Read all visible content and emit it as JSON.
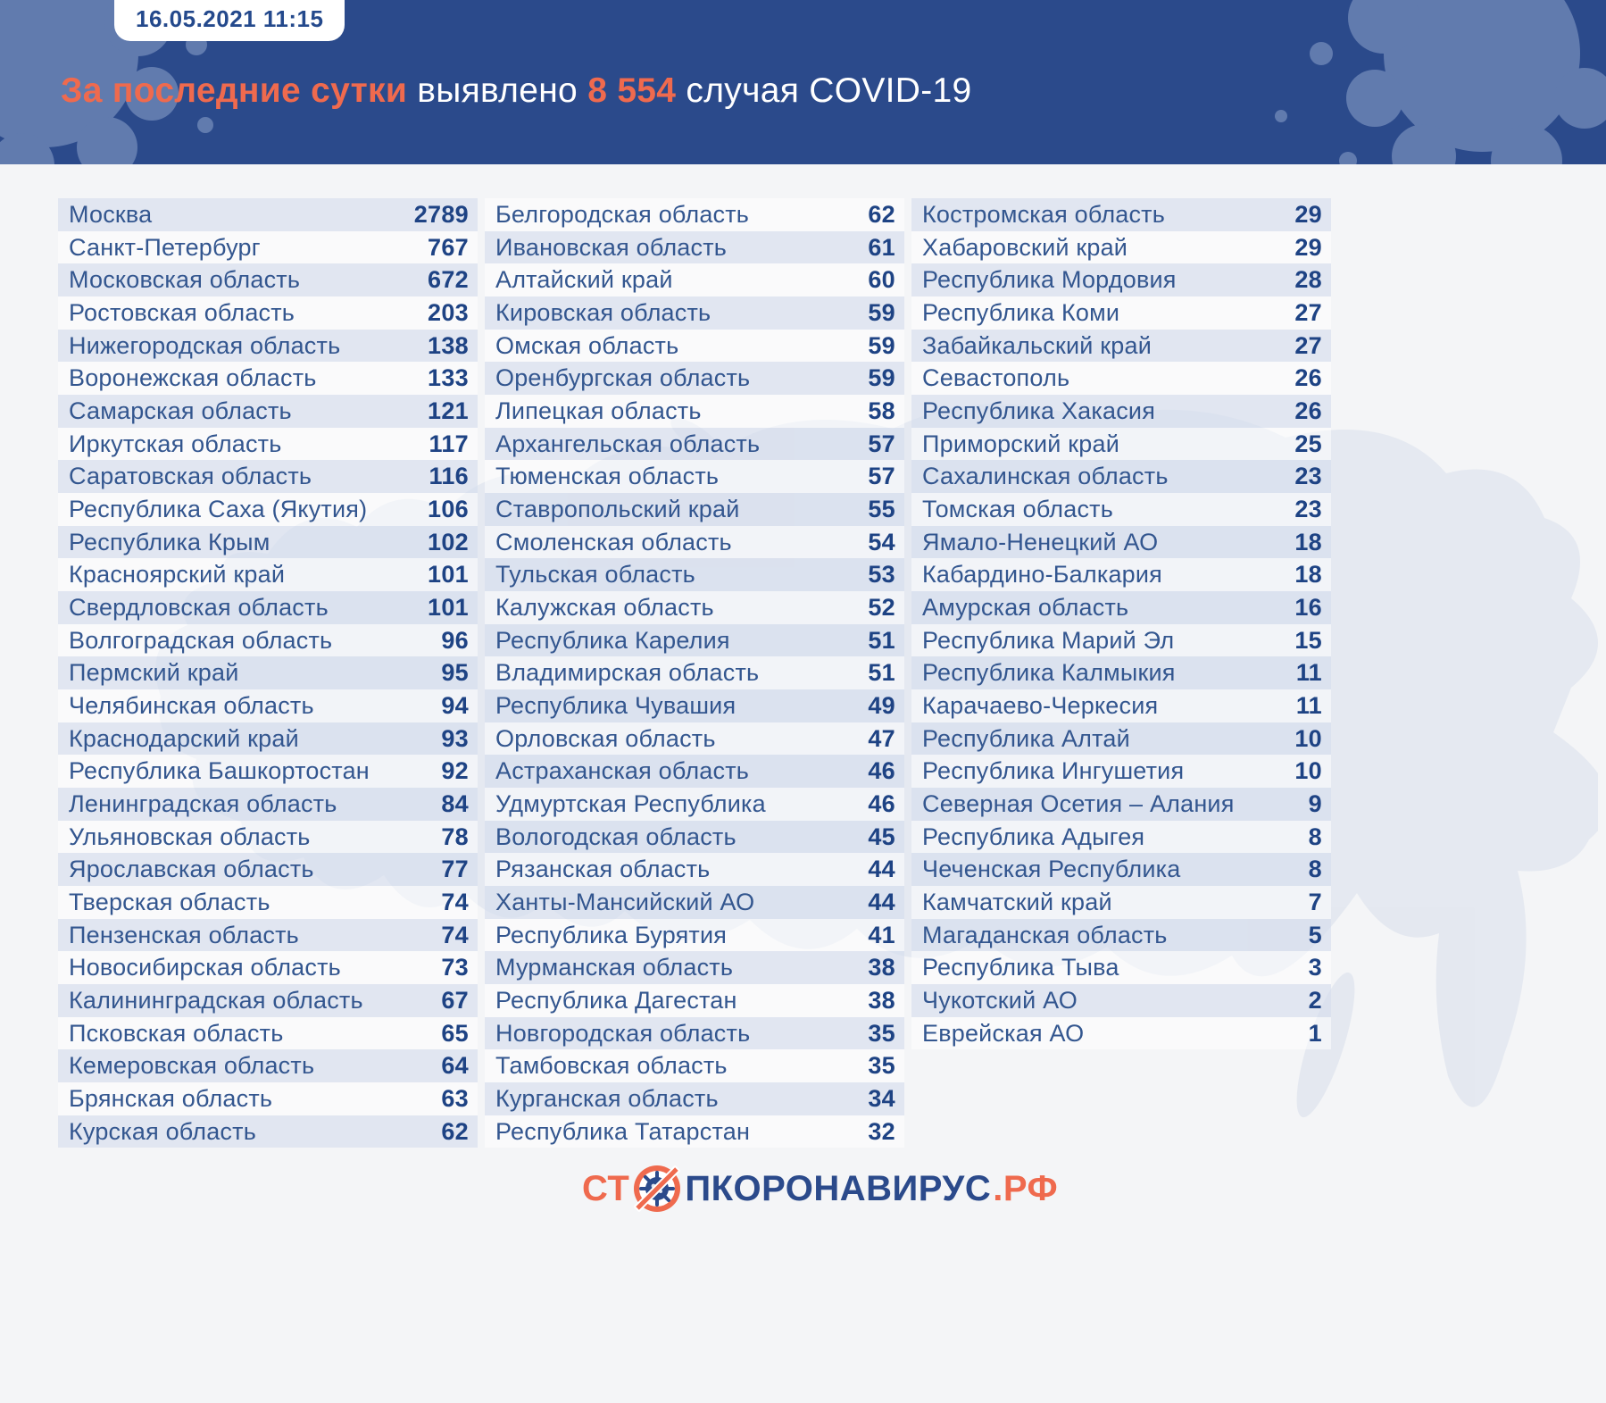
{
  "header": {
    "badge": "16.05.2021 11:15",
    "title": {
      "accent1": "За последние сутки",
      "plain1": " выявлено ",
      "accent2": "8 554",
      "plain2": " случая COVID-19"
    }
  },
  "table": {
    "columns": [
      {
        "rows": [
          {
            "name": "Москва",
            "value": "2789"
          },
          {
            "name": "Санкт-Петербург",
            "value": "767"
          },
          {
            "name": "Московская область",
            "value": "672"
          },
          {
            "name": "Ростовская область",
            "value": "203"
          },
          {
            "name": "Нижегородская область",
            "value": "138"
          },
          {
            "name": "Воронежская область",
            "value": "133"
          },
          {
            "name": "Самарская область",
            "value": "121"
          },
          {
            "name": "Иркутская область",
            "value": "117"
          },
          {
            "name": "Саратовская область",
            "value": "116"
          },
          {
            "name": "Республика Саха (Якутия)",
            "value": "106"
          },
          {
            "name": "Республика Крым",
            "value": "102"
          },
          {
            "name": "Красноярский край",
            "value": "101"
          },
          {
            "name": "Свердловская область",
            "value": "101"
          },
          {
            "name": "Волгоградская область",
            "value": "96"
          },
          {
            "name": "Пермский край",
            "value": "95"
          },
          {
            "name": "Челябинская область",
            "value": "94"
          },
          {
            "name": "Краснодарский край",
            "value": "93"
          },
          {
            "name": "Республика Башкортостан",
            "value": "92"
          },
          {
            "name": "Ленинградская область",
            "value": "84"
          },
          {
            "name": "Ульяновская область",
            "value": "78"
          },
          {
            "name": "Ярославская область",
            "value": "77"
          },
          {
            "name": "Тверская область",
            "value": "74"
          },
          {
            "name": "Пензенская область",
            "value": "74"
          },
          {
            "name": "Новосибирская область",
            "value": "73"
          },
          {
            "name": "Калининградская область",
            "value": "67"
          },
          {
            "name": "Псковская область",
            "value": "65"
          },
          {
            "name": "Кемеровская область",
            "value": "64"
          },
          {
            "name": "Брянская область",
            "value": "63"
          },
          {
            "name": "Курская область",
            "value": "62"
          }
        ]
      },
      {
        "rows": [
          {
            "name": "Белгородская область",
            "value": "62"
          },
          {
            "name": "Ивановская область",
            "value": "61"
          },
          {
            "name": "Алтайский край",
            "value": "60"
          },
          {
            "name": "Кировская область",
            "value": "59"
          },
          {
            "name": "Омская область",
            "value": "59"
          },
          {
            "name": "Оренбургская область",
            "value": "59"
          },
          {
            "name": "Липецкая область",
            "value": "58"
          },
          {
            "name": "Архангельская область",
            "value": "57"
          },
          {
            "name": "Тюменская область",
            "value": "57"
          },
          {
            "name": "Ставропольский край",
            "value": "55"
          },
          {
            "name": "Смоленская область",
            "value": "54"
          },
          {
            "name": "Тульская область",
            "value": "53"
          },
          {
            "name": "Калужская область",
            "value": "52"
          },
          {
            "name": "Республика Карелия",
            "value": "51"
          },
          {
            "name": "Владимирская область",
            "value": "51"
          },
          {
            "name": "Республика Чувашия",
            "value": "49"
          },
          {
            "name": "Орловская область",
            "value": "47"
          },
          {
            "name": "Астраханская область",
            "value": "46"
          },
          {
            "name": "Удмуртская Республика",
            "value": "46"
          },
          {
            "name": "Вологодская область",
            "value": "45"
          },
          {
            "name": "Рязанская область",
            "value": "44"
          },
          {
            "name": "Ханты-Мансийский АО",
            "value": "44"
          },
          {
            "name": "Республика Бурятия",
            "value": "41"
          },
          {
            "name": "Мурманская область",
            "value": "38"
          },
          {
            "name": "Республика Дагестан",
            "value": "38"
          },
          {
            "name": "Новгородская область",
            "value": "35"
          },
          {
            "name": "Тамбовская область",
            "value": "35"
          },
          {
            "name": "Курганская область",
            "value": "34"
          },
          {
            "name": "Республика Татарстан",
            "value": "32"
          }
        ]
      },
      {
        "rows": [
          {
            "name": "Костромская область",
            "value": "29"
          },
          {
            "name": "Хабаровский край",
            "value": "29"
          },
          {
            "name": "Республика Мордовия",
            "value": "28"
          },
          {
            "name": "Республика Коми",
            "value": "27"
          },
          {
            "name": "Забайкальский край",
            "value": "27"
          },
          {
            "name": "Севастополь",
            "value": "26"
          },
          {
            "name": "Республика Хакасия",
            "value": "26"
          },
          {
            "name": "Приморский край",
            "value": "25"
          },
          {
            "name": "Сахалинская область",
            "value": "23"
          },
          {
            "name": "Томская область",
            "value": "23"
          },
          {
            "name": "Ямало-Ненецкий АО",
            "value": "18"
          },
          {
            "name": "Кабардино-Балкария",
            "value": "18"
          },
          {
            "name": "Амурская область",
            "value": "16"
          },
          {
            "name": "Республика Марий Эл",
            "value": "15"
          },
          {
            "name": "Республика Калмыкия",
            "value": "11"
          },
          {
            "name": "Карачаево-Черкесия",
            "value": "11"
          },
          {
            "name": "Республика Алтай",
            "value": "10"
          },
          {
            "name": "Республика Ингушетия",
            "value": "10"
          },
          {
            "name": "Северная Осетия – Алания",
            "value": "9"
          },
          {
            "name": "Республика Адыгея",
            "value": "8"
          },
          {
            "name": "Чеченская Республика",
            "value": "8"
          },
          {
            "name": "Камчатский край",
            "value": "7"
          },
          {
            "name": "Магаданская область",
            "value": "5"
          },
          {
            "name": "Республика Тыва",
            "value": "3"
          },
          {
            "name": "Чукотский АО",
            "value": "2"
          },
          {
            "name": "Еврейская АО",
            "value": "1"
          }
        ]
      }
    ]
  },
  "footer": {
    "logo_prefix": "СТ",
    "logo_middle": "ПКОРОНАВИРУС",
    "logo_suffix": ".РФ"
  },
  "colors": {
    "header_bg": "#2b4a8b",
    "accent_orange": "#ef6a4e",
    "name_text": "#33568f",
    "value_text": "#1e4384",
    "row_band": "#e6eaf3",
    "page_bg": "#f4f5f7"
  }
}
